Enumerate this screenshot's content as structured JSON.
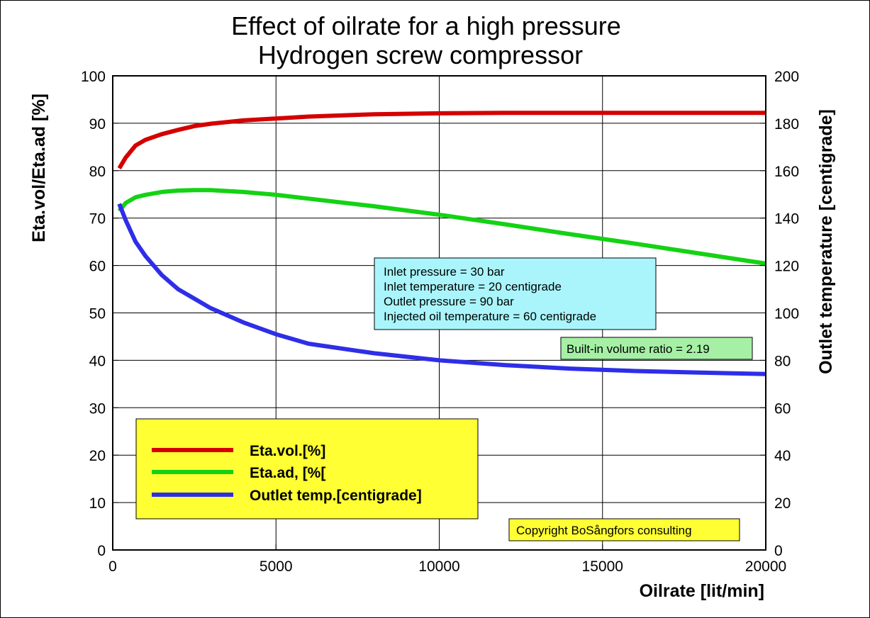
{
  "chart_data": {
    "type": "line",
    "title_lines": [
      "Effect of oilrate for a high pressure",
      "Hydrogen screw compressor"
    ],
    "xlabel": "Oilrate [lit/min]",
    "ylabel": "Eta.vol/Eta.ad [%]",
    "y2label": "Outlet temperature [centigrade]",
    "xlim": [
      0,
      20000
    ],
    "ylim": [
      0,
      100
    ],
    "y2lim": [
      0,
      200
    ],
    "xticks": [
      0,
      5000,
      10000,
      15000,
      20000
    ],
    "xtick_labels": [
      "0",
      "5000",
      "10000",
      "15000",
      "20000"
    ],
    "yticks": [
      0,
      10,
      20,
      30,
      40,
      50,
      60,
      70,
      80,
      90,
      100
    ],
    "ytick_labels": [
      "0",
      "10",
      "20",
      "30",
      "40",
      "50",
      "60",
      "70",
      "80",
      "90",
      "100"
    ],
    "y2ticks": [
      0,
      20,
      40,
      60,
      80,
      100,
      120,
      140,
      160,
      180,
      200
    ],
    "y2tick_labels": [
      "0",
      "20",
      "40",
      "60",
      "80",
      "100",
      "120",
      "140",
      "160",
      "180",
      "200"
    ],
    "grid": true,
    "legend_placement": "bottom-left",
    "series": [
      {
        "name": "Eta.vol.[%]",
        "axis": "left",
        "color": "#d40000",
        "x": [
          200,
          400,
          700,
          1000,
          1500,
          2000,
          2500,
          3000,
          4000,
          5000,
          6000,
          8000,
          10000,
          12000,
          14000,
          16000,
          18000,
          20000
        ],
        "y": [
          80.5,
          82.8,
          85.3,
          86.5,
          87.7,
          88.6,
          89.4,
          89.9,
          90.6,
          91.0,
          91.4,
          91.9,
          92.1,
          92.2,
          92.2,
          92.2,
          92.2,
          92.2
        ]
      },
      {
        "name": "Eta.ad, [%[",
        "axis": "left",
        "color": "#14d214",
        "x": [
          200,
          400,
          700,
          1000,
          1500,
          2000,
          2500,
          3000,
          4000,
          5000,
          6000,
          8000,
          10000,
          12000,
          14000,
          16000,
          18000,
          20000
        ],
        "y": [
          71.5,
          73.2,
          74.4,
          74.9,
          75.5,
          75.8,
          75.9,
          75.9,
          75.5,
          74.9,
          74.1,
          72.5,
          70.7,
          68.7,
          66.6,
          64.6,
          62.5,
          60.4
        ]
      },
      {
        "name": "Outlet temp.[centigrade]",
        "axis": "right",
        "color": "#2e2ee8",
        "x": [
          200,
          400,
          700,
          1000,
          1500,
          2000,
          2500,
          3000,
          4000,
          5000,
          6000,
          8000,
          10000,
          12000,
          14000,
          16000,
          18000,
          20000
        ],
        "y": [
          146,
          139,
          130,
          124,
          116,
          110,
          106,
          102,
          96,
          91,
          87,
          83,
          80,
          78,
          76.5,
          75.5,
          74.8,
          74.2
        ]
      }
    ],
    "annotations": {
      "conditions": [
        "Inlet pressure = 30 bar",
        "Inlet temperature = 20 centigrade",
        "Outlet pressure = 90 bar",
        "Injected oil temperature = 60 centigrade"
      ],
      "conditions_bg": "#a9f5fb",
      "volume_ratio": "Built-in volume ratio = 2.19",
      "volume_ratio_bg": "#a6f0a6",
      "copyright": "Copyright BoSångfors consulting",
      "copyright_bg": "#ffff33",
      "legend_bg": "#ffff33"
    }
  }
}
